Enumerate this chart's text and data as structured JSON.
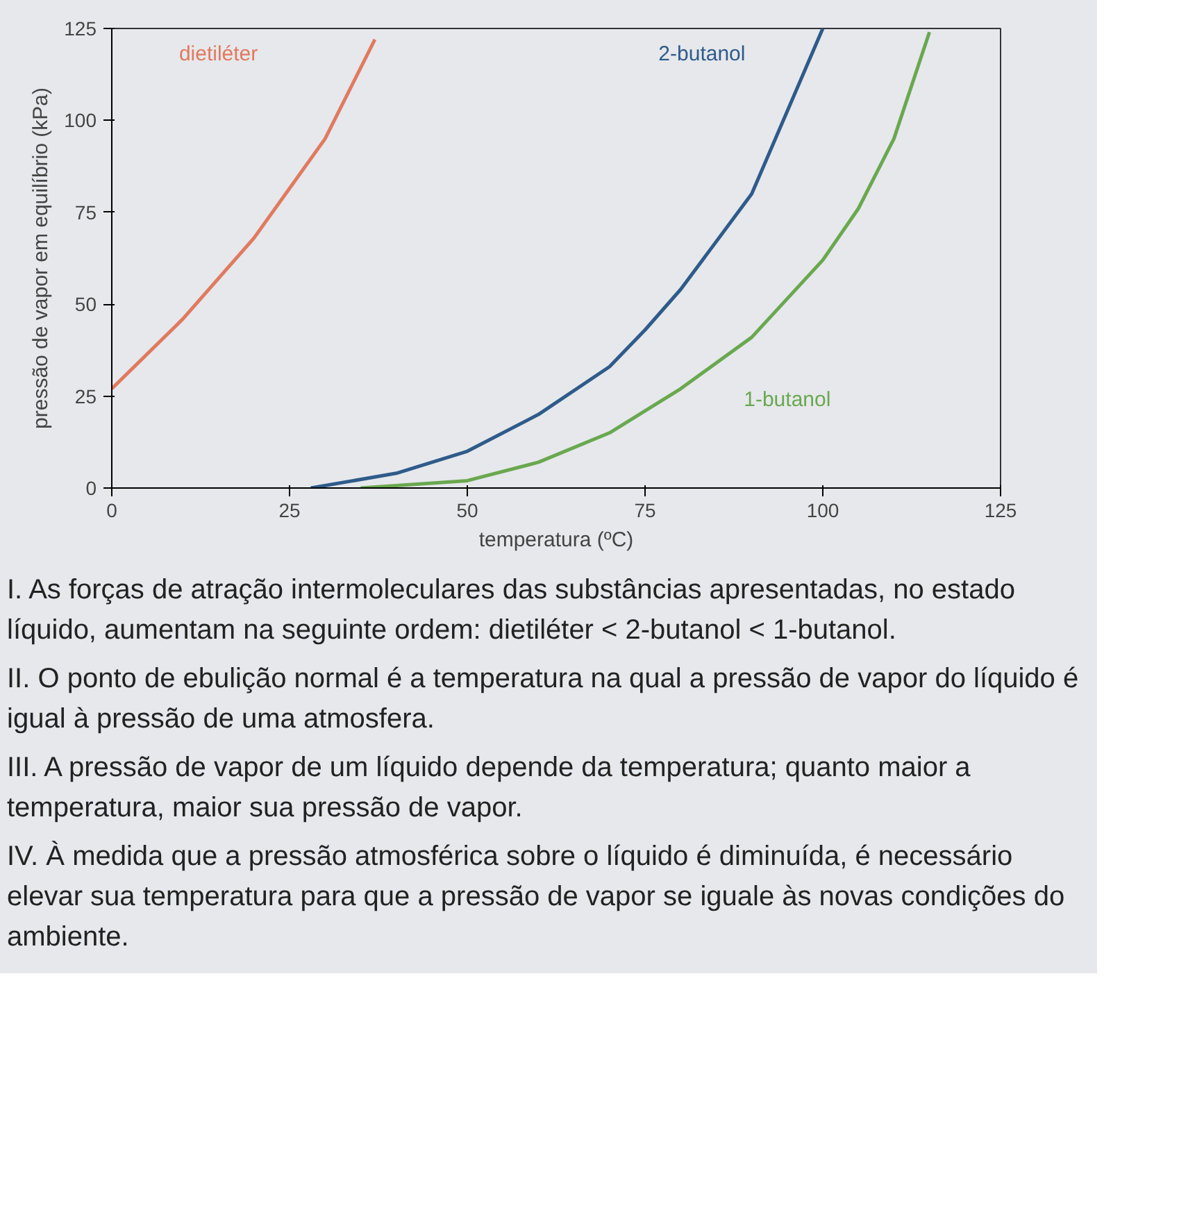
{
  "chart_data": {
    "type": "line",
    "xlabel": "temperatura (ºC)",
    "ylabel": "pressão de vapor em equilíbrio (kPa)",
    "xlim": [
      0,
      125
    ],
    "ylim": [
      0,
      125
    ],
    "xticks": [
      0,
      25,
      50,
      75,
      100,
      125
    ],
    "yticks": [
      0,
      25,
      50,
      75,
      100,
      125
    ],
    "grid": false,
    "marker": "none",
    "line_style": "solid",
    "series": [
      {
        "name": "dietiléter",
        "color": "#e07a5f",
        "x": [
          0,
          10,
          20,
          30,
          37
        ],
        "values": [
          27,
          46,
          68,
          95,
          122
        ]
      },
      {
        "name": "2-butanol",
        "color": "#2f5b8a",
        "x": [
          28,
          40,
          50,
          60,
          70,
          75,
          80,
          90,
          100
        ],
        "values": [
          0,
          4,
          10,
          20,
          33,
          43,
          54,
          80,
          125
        ]
      },
      {
        "name": "1-butanol",
        "color": "#6aa84f",
        "x": [
          35,
          50,
          60,
          70,
          75,
          80,
          90,
          100,
          105,
          110,
          115
        ],
        "values": [
          0,
          2,
          7,
          15,
          21,
          27,
          41,
          62,
          76,
          95,
          124
        ]
      }
    ],
    "annotations": [
      "I. As forças de atração intermoleculares das substâncias apresentadas, no estado líquido, aumentam na seguinte ordem: dietiléter < 2-butanol < 1-butanol.",
      "II. O ponto de ebulição normal é a temperatura na qual a pressão de vapor do líquido é igual à pressão de uma atmosfera.",
      "III. A pressão de vapor de um líquido depende da temperatura; quanto maior a temperatura, maior sua pressão de vapor.",
      "IV. À medida que a pressão atmosférica sobre o líquido é diminuída, é necessário elevar sua temperatura para que a pressão de vapor se iguale às novas condições do ambiente."
    ]
  }
}
